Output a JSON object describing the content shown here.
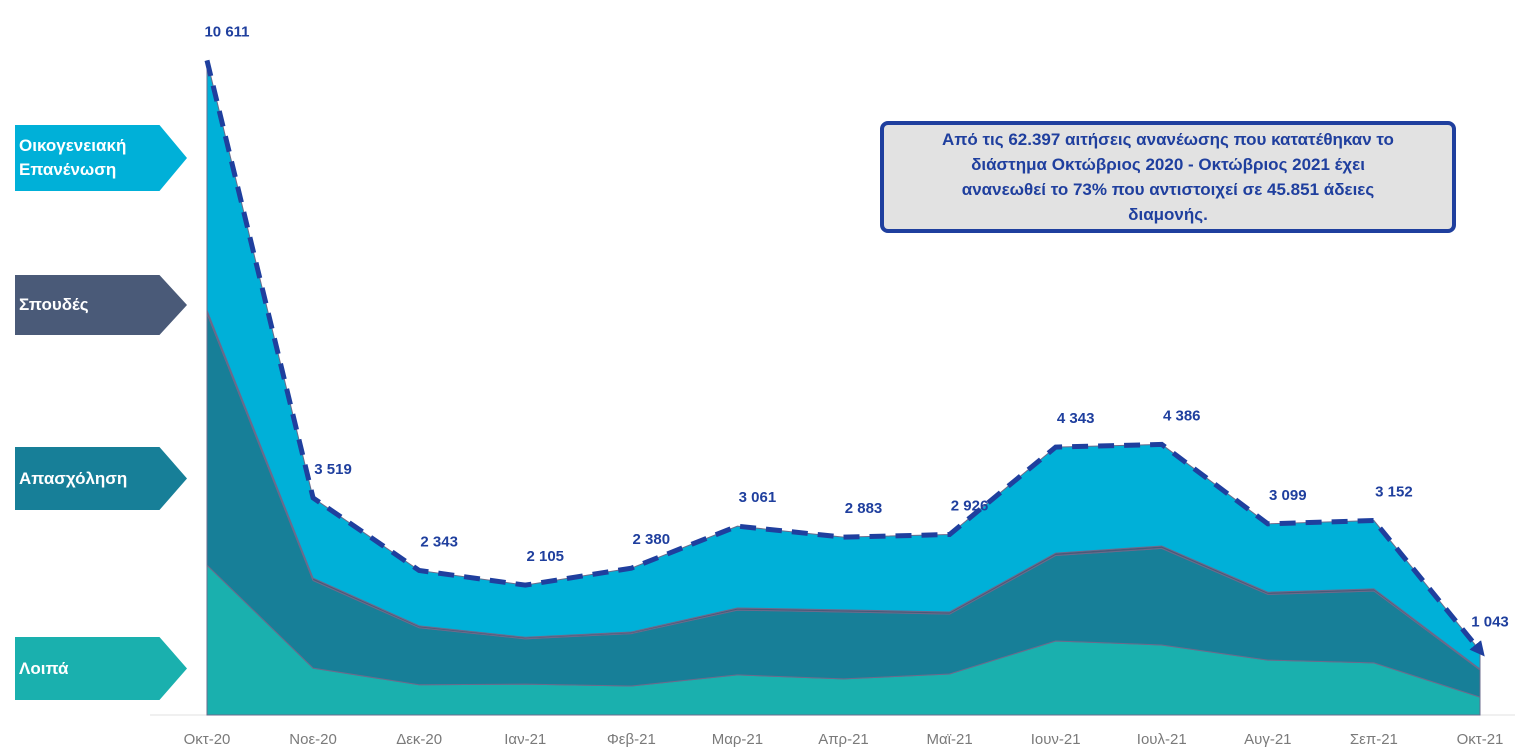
{
  "chart_data": {
    "type": "stacked_area",
    "categories": [
      "Οκτ-20",
      "Νοε-20",
      "Δεκ-20",
      "Ιαν-21",
      "Φεβ-21",
      "Μαρ-21",
      "Απρ-21",
      "Μαϊ-21",
      "Ιουν-21",
      "Ιουλ-21",
      "Αυγ-21",
      "Σεπ-21",
      "Οκτ-21"
    ],
    "series": [
      {
        "name": "Λοιπά",
        "color": "#1ab0ae",
        "values": [
          2430,
          760,
          490,
          500,
          470,
          650,
          585,
          665,
          1200,
          1135,
          890,
          845,
          290
        ]
      },
      {
        "name": "Απασχόληση",
        "color": "#177f98",
        "values": [
          4080,
          1420,
          925,
          735,
          850,
          1050,
          1085,
          970,
          1385,
          1565,
          1065,
          1165,
          440
        ]
      },
      {
        "name": "Σπουδές",
        "color": "#4a5a78",
        "values": [
          50,
          40,
          30,
          25,
          25,
          35,
          35,
          35,
          40,
          40,
          35,
          35,
          15
        ]
      },
      {
        "name": "Οικογενειακή Επανένωση",
        "color": "#00b0d8",
        "values": [
          4051,
          1299,
          898,
          845,
          1035,
          1326,
          1178,
          1256,
          1718,
          1646,
          1109,
          1107,
          298
        ]
      }
    ],
    "totals": [
      10611,
      3519,
      2343,
      2105,
      2380,
      3061,
      2883,
      2926,
      4343,
      4386,
      3099,
      3152,
      1043
    ],
    "total_labels": [
      "10 611",
      "3 519",
      "2 343",
      "2 105",
      "2 380",
      "3 061",
      "2 883",
      "2 926",
      "4 343",
      "4 386",
      "3 099",
      "3 152",
      "1 043"
    ],
    "total_line_color": "#1f3f9e",
    "ylim": [
      0,
      11590
    ],
    "annotation": [
      "Από τις 62.397 αιτήσεις ανανέωσης που κατατέθηκαν το",
      "διάστημα Οκτώβριος 2020 - Οκτώβριος 2021 έχει",
      "ανανεωθεί το 73% που αντιστοιχεί σε 45.851 άδειες",
      "διαμονής."
    ]
  }
}
